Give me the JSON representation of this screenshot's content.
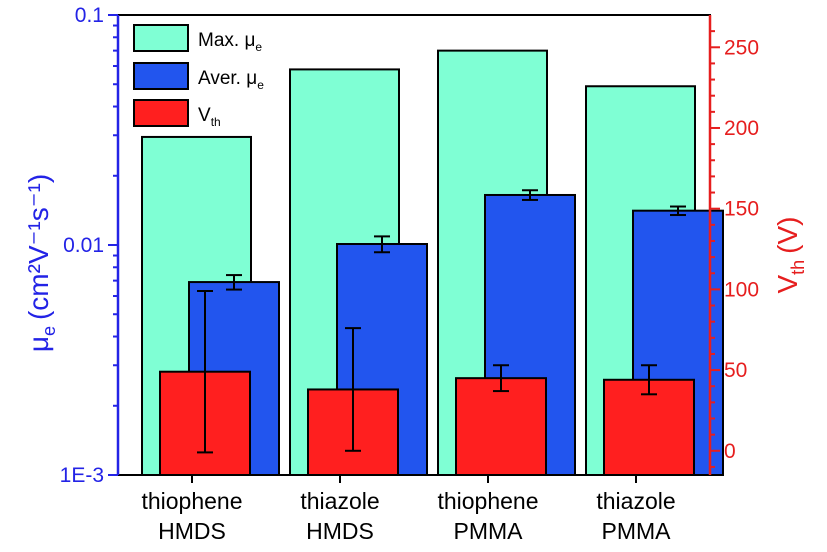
{
  "chart_data": {
    "type": "bar",
    "categories": [
      [
        "thiophene",
        "HMDS"
      ],
      [
        "thiazole",
        "HMDS"
      ],
      [
        "thiophene",
        "PMMA"
      ],
      [
        "thiazole",
        "PMMA"
      ]
    ],
    "left_axis": {
      "label_main": "μ",
      "label_sub": "e",
      "label_units": "(cm²V⁻¹s⁻¹)",
      "scale": "log",
      "ylim": [
        0.001,
        0.1
      ],
      "tick_labels": [
        "1E-3",
        "0.01",
        "0.1"
      ],
      "color": "#2323e6"
    },
    "right_axis": {
      "label_main": "V",
      "label_sub": "th",
      "label_units": "(V)",
      "scale": "linear",
      "ylim": [
        -15,
        270
      ],
      "ticks": [
        0,
        50,
        100,
        150,
        200,
        250
      ],
      "color": "#e61e1e"
    },
    "series": [
      {
        "name": "Max. μe",
        "legend_main": "Max. μ",
        "legend_sub": "e",
        "axis": "left",
        "values": [
          0.0295,
          0.058,
          0.07,
          0.049
        ],
        "color": "#7fffd4"
      },
      {
        "name": "Aver. μe",
        "legend_main": "Aver. μ",
        "legend_sub": "e",
        "axis": "left",
        "values": [
          0.0069,
          0.0101,
          0.0165,
          0.0141
        ],
        "errors": [
          0.0005,
          0.0008,
          0.0008,
          0.0006
        ],
        "color": "#2255ee"
      },
      {
        "name": "Vth",
        "legend_main": "V",
        "legend_sub": "th",
        "axis": "right",
        "values": [
          49,
          38,
          45,
          44
        ],
        "errors": [
          50,
          38,
          8,
          9
        ],
        "color": "#ff1f1f"
      }
    ],
    "legend_position": "top-left",
    "grid": false
  }
}
